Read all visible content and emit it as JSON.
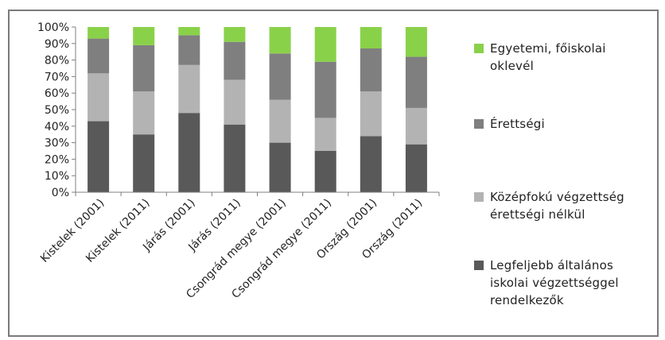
{
  "colors": {
    "egyetemi": "#8ad14a",
    "erettsegi": "#7f7f7f",
    "kozepfoku": "#b3b3b3",
    "altalanos": "#595959",
    "axis": "#7f7f7f",
    "text": "#222222"
  },
  "chart_data": {
    "type": "bar",
    "stacked": true,
    "percent": true,
    "categories": [
      "Kistelek (2001)",
      "Kistelek (2011)",
      "Járás (2001)",
      "Járás (2011)",
      "Csongrád megye (2001)",
      "Csongrád megye (2011)",
      "Ország (2001)",
      "Ország (2011)"
    ],
    "series": [
      {
        "name": "Legfeljebb általános iskolai végzettséggel rendelkezők",
        "color_key": "altalanos",
        "values": [
          43,
          35,
          48,
          41,
          30,
          25,
          34,
          29
        ]
      },
      {
        "name": "Középfokú végzettség érettségi nélkül",
        "color_key": "kozepfoku",
        "values": [
          29,
          26,
          29,
          27,
          26,
          20,
          27,
          22
        ]
      },
      {
        "name": "Érettségi",
        "color_key": "erettsegi",
        "values": [
          21,
          28,
          18,
          23,
          28,
          34,
          26,
          31
        ]
      },
      {
        "name": "Egyetemi, főiskolai oklevél",
        "color_key": "egyetemi",
        "values": [
          7,
          11,
          5,
          9,
          16,
          21,
          13,
          18
        ]
      }
    ],
    "y_ticks": [
      "0%",
      "10%",
      "20%",
      "30%",
      "40%",
      "50%",
      "60%",
      "70%",
      "80%",
      "90%",
      "100%"
    ],
    "ylim": [
      0,
      100
    ],
    "grid": false,
    "legend_position": "right"
  },
  "legend": [
    {
      "lines": [
        "Egyetemi, főiskolai",
        "oklevél"
      ],
      "color_key": "egyetemi"
    },
    {
      "lines": [
        "Érettségi"
      ],
      "color_key": "erettsegi"
    },
    {
      "lines": [
        "Középfokú végzettség",
        "érettségi nélkül"
      ],
      "color_key": "kozepfoku"
    },
    {
      "lines": [
        "Legfeljebb általános",
        "iskolai végzettséggel",
        "rendelkezők"
      ],
      "color_key": "altalanos"
    }
  ]
}
